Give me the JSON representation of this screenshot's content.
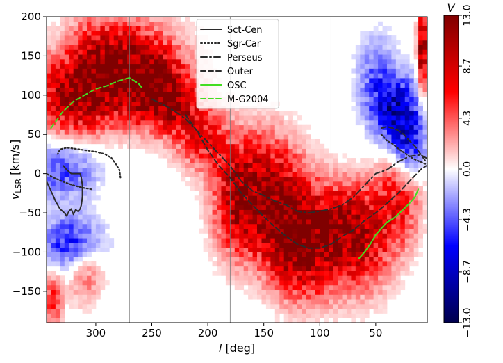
{
  "chart_data": {
    "type": "heatmap",
    "title": "",
    "xlabel_symbol": "l",
    "xlabel_unit": "[deg]",
    "ylabel_symbol": "v",
    "ylabel_subscript": "LSR",
    "ylabel_unit": "[km/s]",
    "xlim": [
      344,
      4
    ],
    "ylim": [
      -190,
      200
    ],
    "x_reversed": true,
    "grid": false,
    "xticks": [
      300,
      250,
      200,
      150,
      100,
      50
    ],
    "xtick_labels": [
      "300",
      "250",
      "200",
      "150",
      "100",
      "50"
    ],
    "yticks": [
      200,
      150,
      100,
      50,
      0,
      -50,
      -100,
      -150
    ],
    "ytick_labels": [
      "200",
      "150",
      "100",
      "50",
      "0",
      "−50",
      "−100",
      "−150"
    ],
    "vertical_lines_l": [
      270,
      180,
      90
    ],
    "colorbar": {
      "title": "V",
      "cmap": "seismic",
      "vmin": -13.0,
      "vmax": 13.0,
      "ticks": [
        13.0,
        8.7,
        4.3,
        0.0,
        -4.3,
        -8.7,
        -13.0
      ],
      "tick_labels": [
        "13.0",
        "8.7",
        "4.3",
        "0.0",
        "−4.3",
        "−8.7",
        "−13.0"
      ]
    },
    "legend": {
      "placement": "top-center"
    },
    "heatmap_blobs": [
      {
        "l": 288,
        "v": 135,
        "sl": 38,
        "sv": 42,
        "amp": 13.0
      },
      {
        "l": 320,
        "v": 95,
        "sl": 22,
        "sv": 32,
        "amp": 8.0
      },
      {
        "l": 250,
        "v": 110,
        "sl": 20,
        "sv": 30,
        "amp": 9.0
      },
      {
        "l": 230,
        "v": 85,
        "sl": 16,
        "sv": 25,
        "amp": 7.0
      },
      {
        "l": 205,
        "v": 45,
        "sl": 16,
        "sv": 28,
        "amp": 6.5
      },
      {
        "l": 175,
        "v": -40,
        "sl": 14,
        "sv": 48,
        "amp": 7.0
      },
      {
        "l": 150,
        "v": -10,
        "sl": 24,
        "sv": 45,
        "amp": 9.0
      },
      {
        "l": 130,
        "v": -70,
        "sl": 20,
        "sv": 40,
        "amp": 8.0
      },
      {
        "l": 110,
        "v": -95,
        "sl": 24,
        "sv": 45,
        "amp": 10.0
      },
      {
        "l": 80,
        "v": -60,
        "sl": 16,
        "sv": 35,
        "amp": 6.0
      },
      {
        "l": 60,
        "v": -85,
        "sl": 18,
        "sv": 45,
        "amp": 7.5
      },
      {
        "l": 30,
        "v": -35,
        "sl": 14,
        "sv": 42,
        "amp": 6.5
      },
      {
        "l": 8,
        "v": 160,
        "sl": 3,
        "sv": 40,
        "amp": 13.0
      },
      {
        "l": 310,
        "v": -120,
        "sl": 12,
        "sv": 30,
        "amp": 5.0
      },
      {
        "l": 338,
        "v": -160,
        "sl": 6,
        "sv": 25,
        "amp": 6.0
      },
      {
        "l": 320,
        "v": -90,
        "sl": 18,
        "sv": 25,
        "amp": -7.5
      },
      {
        "l": 330,
        "v": 5,
        "sl": 22,
        "sv": 25,
        "amp": -5.0
      },
      {
        "l": 330,
        "v": 155,
        "sl": 12,
        "sv": 30,
        "amp": -3.5
      },
      {
        "l": 30,
        "v": 80,
        "sl": 14,
        "sv": 30,
        "amp": -9.5
      },
      {
        "l": 20,
        "v": 30,
        "sl": 10,
        "sv": 25,
        "amp": -6.0
      },
      {
        "l": 50,
        "v": 120,
        "sl": 12,
        "sv": 40,
        "amp": -4.0
      }
    ],
    "series": [
      {
        "name": "Sct-Cen",
        "color": "#2b2b2b",
        "style": "solid",
        "x": [
          344,
          340,
          336,
          332,
          328,
          326,
          324,
          322,
          320,
          318,
          316,
          314,
          313,
          312,
          312,
          313,
          314,
          318,
          322,
          326,
          329
        ],
        "y": [
          -10,
          -22,
          -35,
          -45,
          -50,
          -54,
          -48,
          -45,
          -52,
          -46,
          -48,
          -45,
          -40,
          -30,
          -15,
          -5,
          0,
          0,
          0,
          5,
          10
        ]
      },
      {
        "name": "Sgr-Car",
        "color": "#2b2b2b",
        "style": "dotted",
        "x": [
          304,
          312,
          320,
          330,
          338,
          344
        ],
        "y": [
          -20,
          -18,
          -15,
          -10,
          -5,
          0
        ]
      },
      {
        "name": "Sgr-Car",
        "color": "#2b2b2b",
        "style": "dotted",
        "x": [
          278,
          279,
          282,
          286,
          292,
          300,
          310,
          320,
          326,
          332,
          334
        ],
        "y": [
          -5,
          5,
          12,
          20,
          25,
          28,
          30,
          32,
          33,
          31,
          25
        ]
      },
      {
        "name": "Sgr-Car",
        "color": "#2b2b2b",
        "style": "dotted",
        "x": [
          45,
          40,
          35,
          30,
          25,
          20,
          15,
          10,
          5
        ],
        "y": [
          50,
          42,
          38,
          32,
          27,
          22,
          18,
          15,
          12
        ]
      },
      {
        "name": "Perseus",
        "color": "#2b2b2b",
        "style": "dashdot",
        "x": [
          250,
          240,
          230,
          220,
          210,
          200,
          190,
          180,
          170,
          160,
          150,
          140,
          130,
          120,
          110,
          100,
          90,
          80,
          70,
          60,
          50,
          40,
          30,
          20,
          10,
          5
        ],
        "y": [
          95,
          88,
          80,
          70,
          55,
          40,
          25,
          10,
          -10,
          -22,
          -28,
          -35,
          -40,
          -48,
          -50,
          -48,
          -45,
          -40,
          -30,
          -15,
          0,
          5,
          15,
          22,
          24,
          20
        ]
      },
      {
        "name": "Outer",
        "color": "#2b2b2b",
        "style": "dashed",
        "x": [
          220,
          210,
          200,
          190,
          180,
          170,
          160,
          150,
          140,
          130,
          120,
          110,
          100,
          90,
          80,
          70,
          60,
          50,
          40,
          30,
          20,
          10,
          5
        ],
        "y": [
          75,
          55,
          30,
          10,
          -5,
          -25,
          -40,
          -55,
          -68,
          -80,
          -90,
          -95,
          -95,
          -90,
          -80,
          -72,
          -60,
          -50,
          -38,
          -25,
          -10,
          5,
          10
        ]
      },
      {
        "name": "Outer",
        "color": "#2b2b2b",
        "style": "dashed",
        "x": [
          45,
          40,
          35,
          30,
          25,
          20,
          15,
          10,
          5
        ],
        "y": [
          58,
          60,
          58,
          55,
          50,
          42,
          35,
          25,
          15
        ]
      },
      {
        "name": "OSC",
        "color": "#44dd22",
        "style": "solid",
        "x": [
          65,
          60,
          55,
          50,
          45,
          40,
          35,
          30,
          25,
          20,
          15,
          12
        ],
        "y": [
          -108,
          -100,
          -90,
          -78,
          -70,
          -62,
          -58,
          -52,
          -45,
          -38,
          -30,
          -20
        ]
      },
      {
        "name": "M-G2004",
        "color": "#44dd22",
        "style": "dashed",
        "x": [
          340,
          330,
          320,
          310,
          300,
          290,
          280,
          270,
          262,
          258
        ],
        "y": [
          58,
          78,
          92,
          100,
          108,
          112,
          118,
          122,
          115,
          108
        ]
      }
    ],
    "legend_entries": [
      {
        "label": "Sct-Cen",
        "color": "#2b2b2b",
        "style": "solid"
      },
      {
        "label": "Sgr-Car",
        "color": "#2b2b2b",
        "style": "dotted"
      },
      {
        "label": "Perseus",
        "color": "#2b2b2b",
        "style": "dashdot"
      },
      {
        "label": "Outer",
        "color": "#2b2b2b",
        "style": "dashed"
      },
      {
        "label": "OSC",
        "color": "#44dd22",
        "style": "solid"
      },
      {
        "label": "M-G2004",
        "color": "#44dd22",
        "style": "dashed"
      }
    ]
  }
}
